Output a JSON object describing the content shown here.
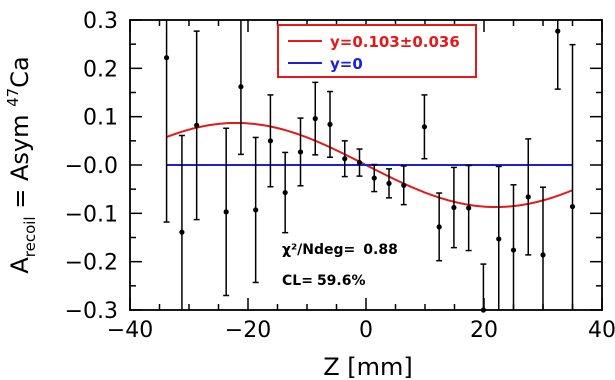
{
  "chart_data": {
    "type": "scatter",
    "xlabel": "Z [mm]",
    "ylabel": {
      "main": "A",
      "subscript": "recoil",
      "mid": " = Asym ",
      "superscript": "47",
      "element": "Ca"
    },
    "xlim": [
      -40,
      40
    ],
    "ylim": [
      -0.3,
      0.3
    ],
    "x_tick_labels": [
      "−40",
      "−20",
      "0",
      "20",
      "40"
    ],
    "y_tick_labels": [
      "−0.3",
      "−0.2",
      "−0.1",
      "−0.0",
      "0.1",
      "0.2",
      "0.3"
    ],
    "x_ticks": [
      -40,
      -20,
      0,
      20,
      40
    ],
    "y_ticks": [
      -0.3,
      -0.2,
      -0.1,
      0.0,
      0.1,
      0.2,
      0.3
    ],
    "x_minor": 5,
    "y_minor": 0.05,
    "points": [
      {
        "x": -33.8,
        "y": 0.222,
        "err": 0.34
      },
      {
        "x": -31.2,
        "y": -0.139,
        "err": 0.2
      },
      {
        "x": -28.7,
        "y": 0.082,
        "err": 0.195
      },
      {
        "x": -23.7,
        "y": -0.097,
        "err": 0.173
      },
      {
        "x": -21.2,
        "y": 0.162,
        "err": 0.14
      },
      {
        "x": -18.7,
        "y": -0.093,
        "err": 0.15
      },
      {
        "x": -16.2,
        "y": 0.05,
        "err": 0.095
      },
      {
        "x": -13.7,
        "y": -0.057,
        "err": 0.083
      },
      {
        "x": -11.1,
        "y": 0.027,
        "err": 0.07
      },
      {
        "x": -8.6,
        "y": 0.096,
        "err": 0.075
      },
      {
        "x": -6.1,
        "y": 0.084,
        "err": 0.068
      },
      {
        "x": -3.6,
        "y": 0.013,
        "err": 0.037
      },
      {
        "x": -1.1,
        "y": 0.005,
        "err": 0.028
      },
      {
        "x": 1.4,
        "y": -0.027,
        "err": 0.028
      },
      {
        "x": 3.9,
        "y": -0.038,
        "err": 0.03
      },
      {
        "x": 6.4,
        "y": -0.042,
        "err": 0.04
      },
      {
        "x": 9.9,
        "y": 0.079,
        "err": 0.066
      },
      {
        "x": 12.4,
        "y": -0.128,
        "err": 0.07
      },
      {
        "x": 14.9,
        "y": -0.088,
        "err": 0.083
      },
      {
        "x": 17.4,
        "y": -0.089,
        "err": 0.088
      },
      {
        "x": 19.9,
        "y": -0.3,
        "err": 0.095
      },
      {
        "x": 22.5,
        "y": -0.153,
        "err": 0.15
      },
      {
        "x": 25.0,
        "y": -0.176,
        "err": 0.135
      },
      {
        "x": 27.5,
        "y": -0.066,
        "err": 0.12
      },
      {
        "x": 30.0,
        "y": -0.186,
        "err": 0.14
      },
      {
        "x": 32.5,
        "y": 0.277,
        "err": 0.12
      },
      {
        "x": 35.0,
        "y": -0.086,
        "err": 0.335
      }
    ],
    "series": [
      {
        "name": "y=0.103±0.036",
        "color": "#e31a1c",
        "amplitude": 0.087,
        "period": 88,
        "phase_zero": 0,
        "x_range": [
          -33.8,
          35.0
        ],
        "shape": "negative-sine"
      },
      {
        "name": "y=0",
        "color": "#1f1fd6",
        "value": 0.0,
        "x_range": [
          -33.8,
          35.0
        ]
      }
    ],
    "legend": {
      "position": "top-center"
    },
    "stats": {
      "chi2_label": "χ²/Ndeg=",
      "chi2_value": "0.88",
      "cl_label": "CL=",
      "cl_value": "59.6%"
    }
  },
  "colors": {
    "fit": "#e31a1c",
    "zero": "#1f1fd6",
    "points": "#000000",
    "axes": "#000000"
  }
}
